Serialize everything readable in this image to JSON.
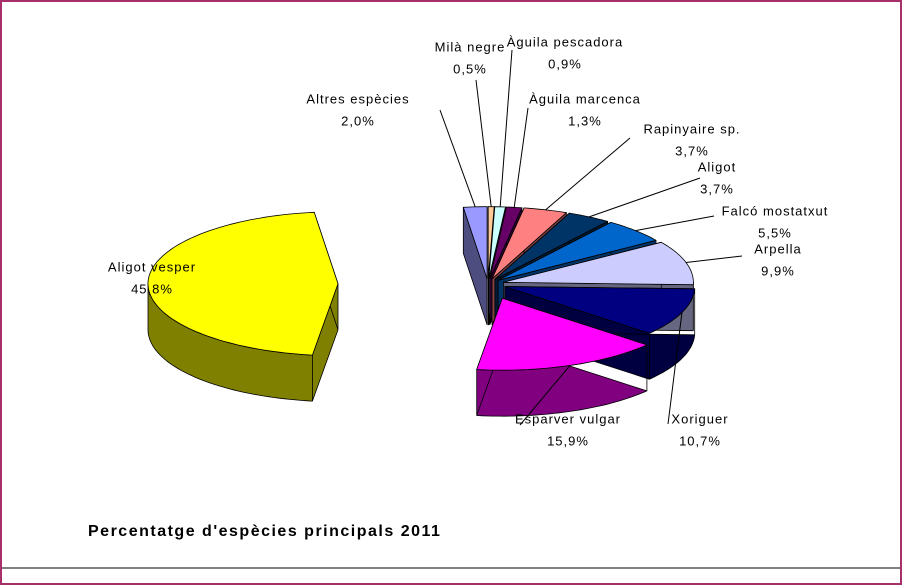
{
  "chart_data": {
    "type": "pie3d",
    "title": "Percentatge d'espècies principals 2011",
    "categories": [
      "Milà negre",
      "Àguila pescadora",
      "Àguila marcenca",
      "Rapinyaire sp.",
      "Aligot",
      "Falcó mostatxut",
      "Arpella",
      "Xoriguer",
      "Esparver vulgar",
      "Aligot vesper",
      "Altres espècies"
    ],
    "values": [
      0.5,
      0.9,
      1.3,
      3.7,
      3.7,
      5.5,
      9.9,
      10.7,
      15.9,
      45.8,
      2.0
    ],
    "value_labels": [
      "0,5%",
      "0,9%",
      "1,3%",
      "3,7%",
      "3,7%",
      "5,5%",
      "9,9%",
      "10,7%",
      "15,9%",
      "45,8%",
      "2,0%"
    ],
    "colors": [
      "#ffcc99",
      "#ccffff",
      "#660066",
      "#ff8080",
      "#003366",
      "#0066cc",
      "#ccccff",
      "#000080",
      "#ff00ff",
      "#ffff00",
      "#9999ff"
    ]
  }
}
